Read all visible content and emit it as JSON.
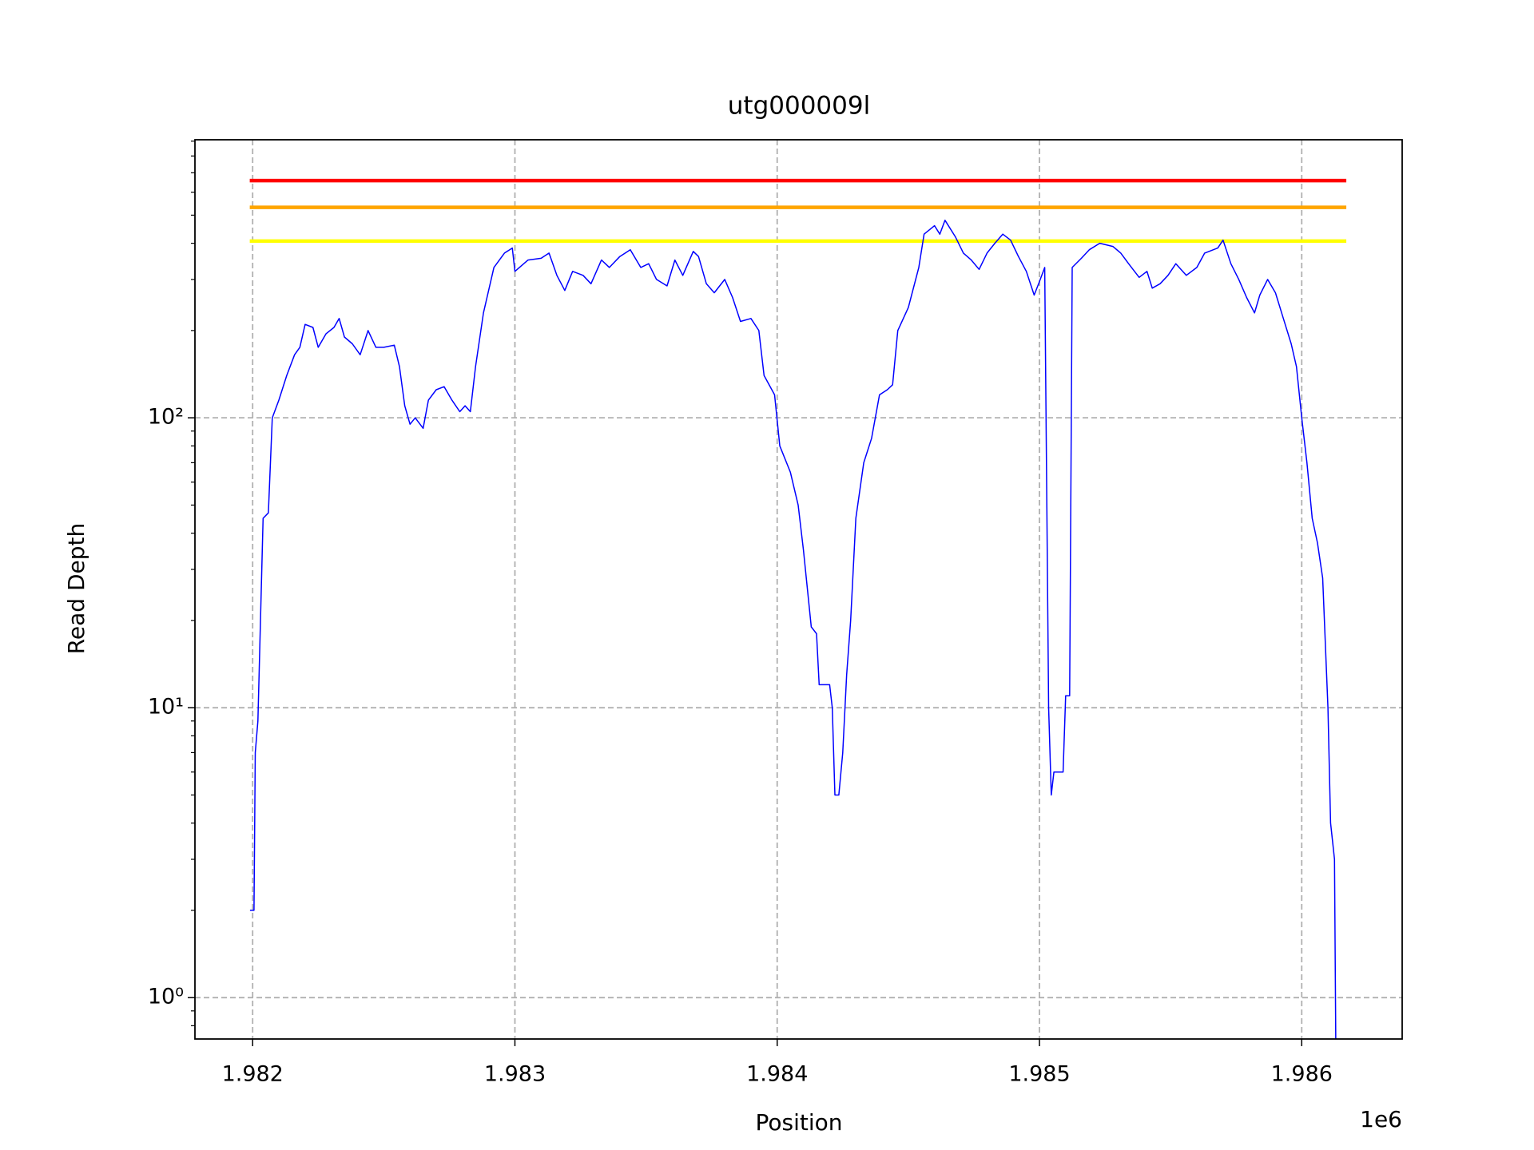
{
  "chart_data": {
    "type": "line",
    "title": "utg000009l",
    "x_label": "Position",
    "y_label": "Read Depth",
    "x_offset_label": "1e6",
    "log_y": true,
    "grid": true,
    "xlim": [
      1981780,
      1986383
    ],
    "ylim": [
      0.72,
      910
    ],
    "xticks": [
      {
        "value": 1982000,
        "label": "1.982"
      },
      {
        "value": 1983000,
        "label": "1.983"
      },
      {
        "value": 1984000,
        "label": "1.984"
      },
      {
        "value": 1985000,
        "label": "1.985"
      },
      {
        "value": 1986000,
        "label": "1.986"
      }
    ],
    "yticks": [
      {
        "value": 1,
        "label": "10⁰"
      },
      {
        "value": 10,
        "label": "10¹"
      },
      {
        "value": 100,
        "label": "10²"
      }
    ],
    "hlines": [
      {
        "value": 658,
        "color": "#ff0000",
        "xmin": 1981989,
        "xmax": 1986170
      },
      {
        "value": 532,
        "color": "#ffa500",
        "xmin": 1981989,
        "xmax": 1986170
      },
      {
        "value": 407,
        "color": "#ffff00",
        "xmin": 1981989,
        "xmax": 1986170
      }
    ],
    "series": [
      {
        "color": "#0000ff",
        "x": [
          1981990,
          1982005,
          1982010,
          1982020,
          1982040,
          1982060,
          1982075,
          1982100,
          1982130,
          1982160,
          1982180,
          1982200,
          1982230,
          1982250,
          1982280,
          1982310,
          1982330,
          1982350,
          1982380,
          1982410,
          1982440,
          1982470,
          1982500,
          1982540,
          1982560,
          1982580,
          1982600,
          1982620,
          1982650,
          1982670,
          1982700,
          1982730,
          1982760,
          1982790,
          1982810,
          1982830,
          1982850,
          1982880,
          1982920,
          1982960,
          1982990,
          1983000,
          1983050,
          1983100,
          1983130,
          1983160,
          1983190,
          1983220,
          1983260,
          1983290,
          1983330,
          1983360,
          1983400,
          1983440,
          1983480,
          1983510,
          1983540,
          1983580,
          1983610,
          1983640,
          1983680,
          1983700,
          1983730,
          1983760,
          1983800,
          1983830,
          1983860,
          1983900,
          1983930,
          1983950,
          1983990,
          1984010,
          1984050,
          1984080,
          1984100,
          1984130,
          1984150,
          1984160,
          1984200,
          1984210,
          1984220,
          1984235,
          1984250,
          1984265,
          1984280,
          1984300,
          1984330,
          1984360,
          1984390,
          1984420,
          1984440,
          1984460,
          1984500,
          1984540,
          1984560,
          1984600,
          1984620,
          1984640,
          1984680,
          1984710,
          1984740,
          1984770,
          1984800,
          1984830,
          1984860,
          1984890,
          1984920,
          1984950,
          1984980,
          1985000,
          1985020,
          1985035,
          1985045,
          1985055,
          1985090,
          1985100,
          1985115,
          1985125,
          1985160,
          1985190,
          1985230,
          1985280,
          1985310,
          1985340,
          1985380,
          1985410,
          1985430,
          1985460,
          1985490,
          1985520,
          1985560,
          1985600,
          1985630,
          1985680,
          1985700,
          1985730,
          1985760,
          1985790,
          1985820,
          1985840,
          1985870,
          1985900,
          1985930,
          1985960,
          1985980,
          1986000,
          1986020,
          1986040,
          1986060,
          1986080,
          1986100,
          1986110,
          1986125,
          1986130
        ],
        "values": [
          2,
          2,
          7,
          9,
          45,
          47,
          100,
          115,
          140,
          165,
          175,
          210,
          205,
          175,
          195,
          205,
          220,
          190,
          180,
          165,
          200,
          175,
          175,
          178,
          150,
          110,
          95,
          100,
          92,
          115,
          125,
          128,
          115,
          105,
          110,
          105,
          150,
          230,
          330,
          370,
          385,
          320,
          350,
          355,
          370,
          310,
          275,
          320,
          310,
          290,
          350,
          330,
          360,
          380,
          330,
          340,
          300,
          285,
          350,
          310,
          375,
          360,
          290,
          270,
          300,
          260,
          215,
          220,
          200,
          140,
          120,
          80,
          65,
          50,
          35,
          19,
          18,
          12,
          12,
          10,
          5,
          5,
          7,
          13,
          20,
          45,
          70,
          85,
          120,
          125,
          130,
          200,
          240,
          330,
          430,
          460,
          430,
          480,
          420,
          370,
          350,
          325,
          370,
          400,
          430,
          410,
          360,
          320,
          265,
          295,
          330,
          10,
          5,
          6,
          6,
          11,
          11,
          330,
          355,
          380,
          400,
          390,
          370,
          340,
          305,
          320,
          280,
          290,
          310,
          340,
          310,
          330,
          370,
          385,
          410,
          340,
          300,
          260,
          230,
          265,
          300,
          270,
          220,
          180,
          150,
          100,
          70,
          45,
          37,
          28,
          10,
          4,
          3,
          0.7
        ]
      }
    ]
  }
}
